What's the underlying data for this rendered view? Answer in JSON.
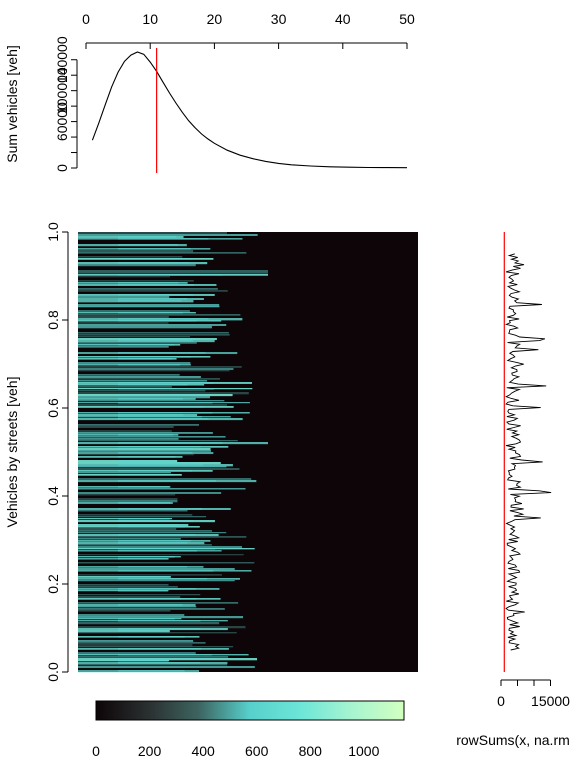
{
  "chart_data": [
    {
      "type": "line",
      "panel": "top",
      "title": "",
      "xlabel": "",
      "ylabel": "Sum vehicles [veh]",
      "xlim": [
        0,
        50
      ],
      "ylim": [
        0,
        150000
      ],
      "x_ticks": [
        0,
        10,
        20,
        30,
        40,
        50
      ],
      "x_tick_labels": [
        "0",
        "10",
        "20",
        "30",
        "40",
        "50"
      ],
      "x_axis_position": "top",
      "y_ticks": [
        0,
        20000,
        40000,
        60000,
        80000,
        100000,
        120000,
        140000
      ],
      "y_tick_labels": [
        "0",
        "",
        "",
        "60000",
        "",
        "100000",
        "",
        "140000"
      ],
      "vline_x": 11,
      "vline_color": "#ff0000",
      "line_color": "#000000",
      "x": [
        1,
        2,
        3,
        4,
        5,
        6,
        7,
        8,
        9,
        10,
        11,
        12,
        13,
        14,
        15,
        16,
        17,
        18,
        19,
        20,
        22,
        24,
        26,
        28,
        30,
        32,
        35,
        38,
        41,
        44,
        47,
        50
      ],
      "y": [
        36000,
        58000,
        82000,
        105000,
        124000,
        138000,
        146000,
        150000,
        147000,
        137000,
        125000,
        111000,
        97000,
        84000,
        72000,
        61000,
        52000,
        44000,
        37500,
        32000,
        23000,
        16500,
        12000,
        8500,
        6000,
        4200,
        2600,
        1600,
        1000,
        700,
        500,
        400
      ],
      "grid": false
    },
    {
      "type": "heatmap",
      "panel": "main",
      "title": "",
      "xlabel": "",
      "ylabel": "Vehicles by streets [veh]",
      "ylim": [
        0,
        1
      ],
      "y_ticks": [
        0,
        0.2,
        0.4,
        0.6,
        0.8,
        1
      ],
      "y_tick_labels": [
        "0.0",
        "0.2",
        "0.4",
        "0.6",
        "0.8",
        "1.0"
      ],
      "x_axis_shown": false,
      "background_color": "#0d0508",
      "colormap": [
        "#0d0508",
        "#2a2f2f",
        "#3d6460",
        "#57d0cc",
        "#6de6d8",
        "#a8f4d0",
        "#d2ffc0"
      ]
    },
    {
      "type": "colorbar",
      "panel": "legend",
      "range": [
        0,
        1150
      ],
      "ticks": [
        0,
        200,
        400,
        600,
        800,
        1000
      ],
      "tick_labels": [
        "0",
        "200",
        "400",
        "600",
        "800",
        "1000"
      ],
      "colormap": [
        "#0d0508",
        "#2a2f2f",
        "#3d6460",
        "#57d0cc",
        "#6de6d8",
        "#a8f4d0",
        "#d2ffc0"
      ]
    },
    {
      "type": "line",
      "panel": "right",
      "title": "",
      "xlabel": "rowSums(x, na.rm",
      "ylabel": "",
      "xlim": [
        0,
        20000
      ],
      "x_ticks": [
        0,
        5000,
        10000,
        15000
      ],
      "x_tick_labels": [
        "0",
        "",
        "",
        "15000"
      ],
      "vline_x": 1000,
      "vline_color": "#ff0000",
      "line_color": "#000000",
      "grid": false
    }
  ]
}
